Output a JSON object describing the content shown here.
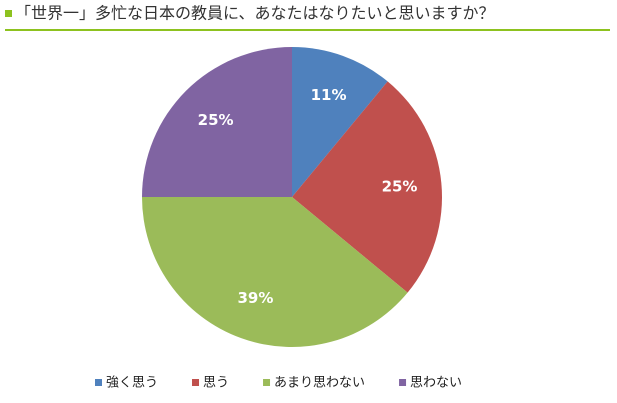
{
  "chart_data": {
    "type": "pie",
    "title": "「世界一」多忙な日本の教員に、あなたはなりたいと思いますか？",
    "categories": [
      "強く思う",
      "思う",
      "あまり思わない",
      "思わない"
    ],
    "values": [
      11,
      25,
      39,
      25
    ],
    "value_labels": [
      "11%",
      "25%",
      "39%",
      "25%"
    ],
    "colors": [
      "#4f81bd",
      "#c0504d",
      "#9bbb59",
      "#8064a2"
    ],
    "legend": "bottom"
  }
}
